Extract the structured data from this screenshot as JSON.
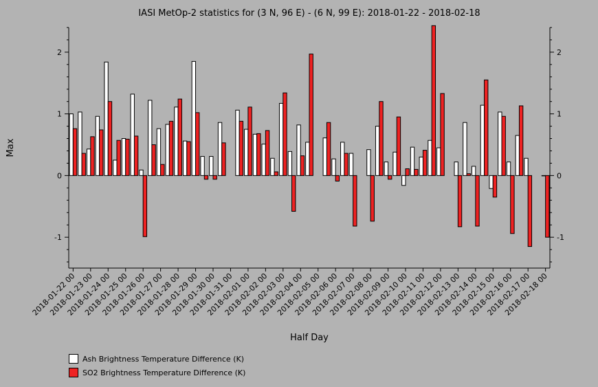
{
  "chart_data": {
    "type": "bar",
    "title": "IASI MetOp-2 statistics for (3 N, 96 E) - (6 N, 99 E): 2018-01-22 - 2018-02-18",
    "xlabel": "Half Day",
    "ylabel": "Max",
    "ylim": [
      -1.5,
      2.4
    ],
    "yticks": [
      -1,
      0,
      1,
      2
    ],
    "categories": [
      "2018-01-22 00",
      "2018-01-22 12",
      "2018-01-23 00",
      "2018-01-23 12",
      "2018-01-24 00",
      "2018-01-24 12",
      "2018-01-25 00",
      "2018-01-25 12",
      "2018-01-26 00",
      "2018-01-26 12",
      "2018-01-27 00",
      "2018-01-27 12",
      "2018-01-28 00",
      "2018-01-28 12",
      "2018-01-29 00",
      "2018-01-29 12",
      "2018-01-30 00",
      "2018-01-30 12",
      "2018-01-31 00",
      "2018-01-31 12",
      "2018-02-01 00",
      "2018-02-01 12",
      "2018-02-02 00",
      "2018-02-02 12",
      "2018-02-03 00",
      "2018-02-03 12",
      "2018-02-04 00",
      "2018-02-04 12",
      "2018-02-05 00",
      "2018-02-05 12",
      "2018-02-06 00",
      "2018-02-06 12",
      "2018-02-07 00",
      "2018-02-07 12",
      "2018-02-08 00",
      "2018-02-08 12",
      "2018-02-09 00",
      "2018-02-09 12",
      "2018-02-10 00",
      "2018-02-10 12",
      "2018-02-11 00",
      "2018-02-11 12",
      "2018-02-12 00",
      "2018-02-12 12",
      "2018-02-13 00",
      "2018-02-13 12",
      "2018-02-14 00",
      "2018-02-14 12",
      "2018-02-15 00",
      "2018-02-15 12",
      "2018-02-16 00",
      "2018-02-16 12",
      "2018-02-17 00",
      "2018-02-17 12",
      "2018-02-18 00"
    ],
    "tick_labels": [
      "2018-01-22 00",
      "2018-01-23 00",
      "2018-01-24 00",
      "2018-01-25 00",
      "2018-01-26 00",
      "2018-01-27 00",
      "2018-01-28 00",
      "2018-01-29 00",
      "2018-01-30 00",
      "2018-01-31 00",
      "2018-02-01 00",
      "2018-02-02 00",
      "2018-02-03 00",
      "2018-02-04 00",
      "2018-02-05 00",
      "2018-02-06 00",
      "2018-02-07 00",
      "2018-02-08 00",
      "2018-02-09 00",
      "2018-02-10 00",
      "2018-02-11 00",
      "2018-02-12 00",
      "2018-02-13 00",
      "2018-02-14 00",
      "2018-02-15 00",
      "2018-02-16 00",
      "2018-02-17 00",
      "2018-02-18 00"
    ],
    "series": [
      {
        "name": "Ash Brightness Temperature Difference (K)",
        "color": "#ffffff",
        "values": [
          1.0,
          1.03,
          0.43,
          0.96,
          1.84,
          0.25,
          0.6,
          1.32,
          0.09,
          1.22,
          0.76,
          0.83,
          1.11,
          0.56,
          1.85,
          0.31,
          0.31,
          0.86,
          null,
          1.06,
          0.75,
          0.67,
          0.51,
          0.28,
          1.17,
          0.39,
          0.82,
          0.54,
          null,
          0.61,
          0.27,
          0.54,
          0.36,
          null,
          0.42,
          0.8,
          0.22,
          0.38,
          -0.16,
          0.46,
          0.3,
          0.57,
          0.45,
          null,
          0.22,
          0.86,
          0.15,
          1.14,
          -0.21,
          1.03,
          0.22,
          0.65,
          0.28,
          null,
          0.0
        ]
      },
      {
        "name": "SO2 Brightness Temperature Difference (K)",
        "color": "#ee2222",
        "values": [
          0.76,
          0.36,
          0.63,
          0.74,
          1.2,
          0.57,
          0.59,
          0.64,
          -0.99,
          0.5,
          0.18,
          0.88,
          1.24,
          0.55,
          1.02,
          -0.06,
          -0.06,
          0.53,
          null,
          0.88,
          1.11,
          0.68,
          0.73,
          0.06,
          1.34,
          -0.58,
          0.32,
          1.97,
          null,
          0.86,
          -0.09,
          0.36,
          -0.82,
          null,
          -0.74,
          1.2,
          -0.06,
          0.95,
          0.11,
          0.1,
          0.41,
          2.43,
          1.33,
          null,
          -0.83,
          0.03,
          -0.82,
          1.55,
          -0.35,
          0.96,
          -0.94,
          1.13,
          -1.15,
          null,
          -1.0
        ]
      }
    ],
    "legend_position": "bottom-left",
    "grid": false
  }
}
